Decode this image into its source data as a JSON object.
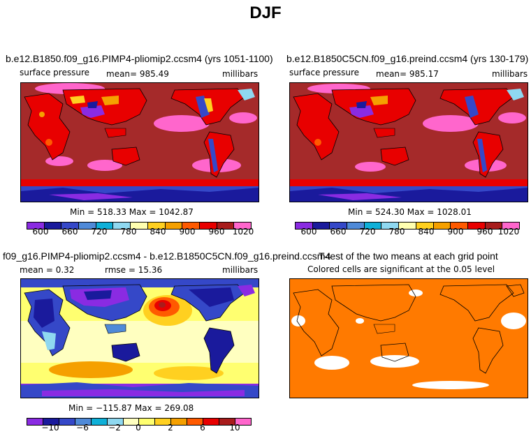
{
  "title": "DJF",
  "palette_full": [
    "#8a2be2",
    "#1a1a9c",
    "#3548c8",
    "#4f8ad8",
    "#0fb0d8",
    "#8fd8f0",
    "#ffffb0",
    "#ffd020",
    "#f5a000",
    "#ff5a00",
    "#e80000",
    "#a81c1c",
    "#ff66cc"
  ],
  "palette_diff": [
    "#8a2be2",
    "#1a1a9c",
    "#3548c8",
    "#4f8ad8",
    "#0fb0d8",
    "#8fd8f0",
    "#ffffc0",
    "#ffff70",
    "#ffd020",
    "#f5a000",
    "#ff5a00",
    "#e80000",
    "#a81c1c",
    "#ff66cc"
  ],
  "colors": {
    "ocean_dark": "#a52a2a",
    "ttest_orange": "#ff7a00"
  },
  "panels": [
    {
      "title": "b.e12.B1850.f09_g16.PIMP4-pliomip2.ccsm4 (yrs 1051-1100)",
      "variable": "surface pressure",
      "mean": "mean= 985.49",
      "units": "millibars",
      "minmax": "Min = 518.33 Max = 1042.87"
    },
    {
      "title": "b.e12.B1850C5CN.f09_g16.preind.ccsm4 (yrs 130-179)",
      "variable": "surface pressure",
      "mean": "mean= 985.17",
      "units": "millibars",
      "minmax": "Min = 524.30 Max = 1028.01"
    },
    {
      "title": "f09_g16.PIMP4-pliomip2.ccsm4 - b.e12.B1850C5CN.f09_g16.preind.ccsm4",
      "mean": "mean =    0.32",
      "rmse": "rmse =   15.36",
      "units": "millibars",
      "minmax": "Min = −115.87 Max = 269.08"
    },
    {
      "title": "T-test of the two means at each grid point",
      "subtitle": "Colored cells are significant at the 0.05 level"
    }
  ],
  "chart_data": [
    {
      "type": "heatmap",
      "title": "b.e12.B1850.f09_g16.PIMP4-pliomip2.ccsm4 (yrs 1051-1100)",
      "variable": "surface pressure",
      "units": "millibars",
      "mean": 985.49,
      "min": 518.33,
      "max": 1042.87,
      "colorbar_ticks": [
        "600",
        "660",
        "720",
        "780",
        "840",
        "900",
        "960",
        "1020"
      ]
    },
    {
      "type": "heatmap",
      "title": "b.e12.B1850C5CN.f09_g16.preind.ccsm4 (yrs 130-179)",
      "variable": "surface pressure",
      "units": "millibars",
      "mean": 985.17,
      "min": 524.3,
      "max": 1028.01,
      "colorbar_ticks": [
        "600",
        "660",
        "720",
        "780",
        "840",
        "900",
        "960",
        "1020"
      ]
    },
    {
      "type": "heatmap",
      "title": "f09_g16.PIMP4-pliomip2.ccsm4 - b.e12.B1850C5CN.f09_g16.preind.ccsm4",
      "units": "millibars",
      "mean": 0.32,
      "rmse": 15.36,
      "min": -115.87,
      "max": 269.08,
      "colorbar_ticks": [
        "−10",
        "−6",
        "−2",
        "0",
        "2",
        "6",
        "10"
      ]
    },
    {
      "type": "heatmap",
      "title": "T-test of the two means at each grid point",
      "subtitle": "Colored cells are significant at the 0.05 level",
      "significance_level": 0.05
    }
  ]
}
